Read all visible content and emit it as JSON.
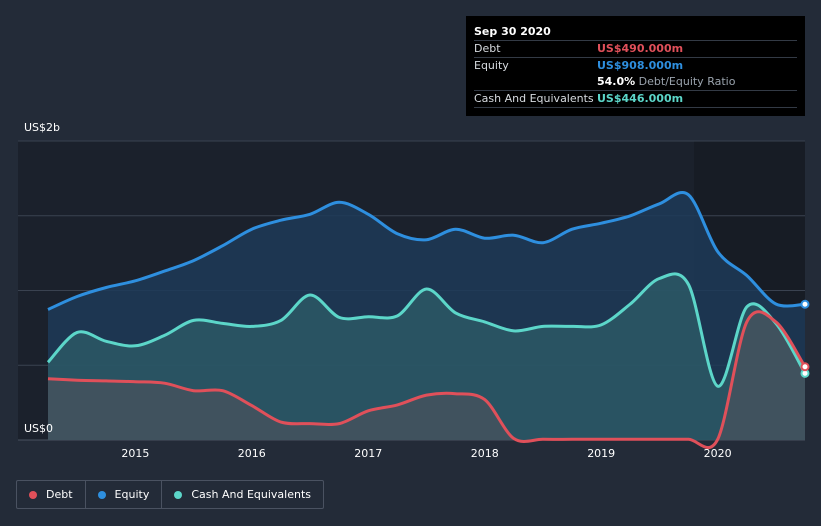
{
  "tooltip": {
    "date": "Sep 30 2020",
    "debt_label": "Debt",
    "debt_value": "US$490.000m",
    "equity_label": "Equity",
    "equity_value": "US$908.000m",
    "ratio_value": "54.0%",
    "ratio_label": "Debt/Equity Ratio",
    "cash_label": "Cash And Equivalents",
    "cash_value": "US$446.000m"
  },
  "legend": [
    {
      "label": "Debt",
      "color": "#e0505a"
    },
    {
      "label": "Equity",
      "color": "#2e8fdf"
    },
    {
      "label": "Cash And Equivalents",
      "color": "#5cd6c9"
    }
  ],
  "colors": {
    "debt": "#e0505a",
    "equity": "#2e8fdf",
    "cash": "#5cd6c9",
    "equity_fill": "#1d3a58",
    "cash_fill": "#2d5e68",
    "debt_fill": "#4a525c",
    "plot_bg": "#1b212c",
    "grid": "#3a4250"
  },
  "chart_data": {
    "type": "area",
    "title": "",
    "xlabel": "",
    "ylabel": "",
    "y_unit_labels": {
      "top": "US$2b",
      "bottom": "US$0"
    },
    "ylim": [
      0,
      2000
    ],
    "xlim": [
      2014.25,
      2020.75
    ],
    "x_ticks": [
      2015,
      2016,
      2017,
      2018,
      2019,
      2020
    ],
    "x_tick_labels": [
      "2015",
      "2016",
      "2017",
      "2018",
      "2019",
      "2020"
    ],
    "grid": true,
    "series": [
      {
        "name": "Equity",
        "points": [
          [
            2014.25,
            873
          ],
          [
            2014.5,
            960
          ],
          [
            2014.75,
            1020
          ],
          [
            2015.0,
            1065
          ],
          [
            2015.25,
            1130
          ],
          [
            2015.5,
            1200
          ],
          [
            2015.75,
            1300
          ],
          [
            2016.0,
            1410
          ],
          [
            2016.25,
            1470
          ],
          [
            2016.5,
            1510
          ],
          [
            2016.75,
            1590
          ],
          [
            2017.0,
            1510
          ],
          [
            2017.25,
            1380
          ],
          [
            2017.5,
            1340
          ],
          [
            2017.75,
            1410
          ],
          [
            2018.0,
            1350
          ],
          [
            2018.25,
            1370
          ],
          [
            2018.5,
            1320
          ],
          [
            2018.75,
            1410
          ],
          [
            2019.0,
            1450
          ],
          [
            2019.25,
            1500
          ],
          [
            2019.5,
            1580
          ],
          [
            2019.75,
            1640
          ],
          [
            2020.0,
            1260
          ],
          [
            2020.25,
            1100
          ],
          [
            2020.5,
            910
          ],
          [
            2020.75,
            908
          ]
        ]
      },
      {
        "name": "Cash And Equivalents",
        "points": [
          [
            2014.25,
            520
          ],
          [
            2014.5,
            720
          ],
          [
            2014.75,
            660
          ],
          [
            2015.0,
            630
          ],
          [
            2015.25,
            700
          ],
          [
            2015.5,
            800
          ],
          [
            2015.75,
            780
          ],
          [
            2016.0,
            760
          ],
          [
            2016.25,
            800
          ],
          [
            2016.5,
            970
          ],
          [
            2016.75,
            820
          ],
          [
            2017.0,
            825
          ],
          [
            2017.25,
            830
          ],
          [
            2017.5,
            1010
          ],
          [
            2017.75,
            850
          ],
          [
            2018.0,
            790
          ],
          [
            2018.25,
            730
          ],
          [
            2018.5,
            760
          ],
          [
            2018.75,
            760
          ],
          [
            2019.0,
            770
          ],
          [
            2019.25,
            910
          ],
          [
            2019.5,
            1080
          ],
          [
            2019.75,
            1040
          ],
          [
            2020.0,
            360
          ],
          [
            2020.25,
            890
          ],
          [
            2020.5,
            780
          ],
          [
            2020.75,
            446
          ]
        ]
      },
      {
        "name": "Debt",
        "points": [
          [
            2014.25,
            410
          ],
          [
            2014.5,
            400
          ],
          [
            2014.75,
            395
          ],
          [
            2015.0,
            390
          ],
          [
            2015.25,
            380
          ],
          [
            2015.5,
            330
          ],
          [
            2015.75,
            330
          ],
          [
            2016.0,
            230
          ],
          [
            2016.25,
            120
          ],
          [
            2016.5,
            110
          ],
          [
            2016.75,
            110
          ],
          [
            2017.0,
            195
          ],
          [
            2017.25,
            235
          ],
          [
            2017.5,
            300
          ],
          [
            2017.75,
            310
          ],
          [
            2018.0,
            270
          ],
          [
            2018.25,
            10
          ],
          [
            2018.5,
            5
          ],
          [
            2018.75,
            5
          ],
          [
            2019.0,
            5
          ],
          [
            2019.25,
            5
          ],
          [
            2019.5,
            5
          ],
          [
            2019.75,
            5
          ],
          [
            2020.0,
            5
          ],
          [
            2020.25,
            790
          ],
          [
            2020.5,
            790
          ],
          [
            2020.75,
            490
          ]
        ]
      }
    ]
  }
}
